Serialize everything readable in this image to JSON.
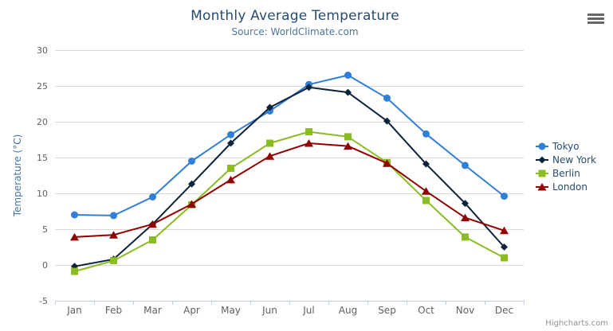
{
  "header": {
    "title": "Monthly Average Temperature",
    "subtitle": "Source: WorldClimate.com"
  },
  "export_menu": {
    "icon": "hamburger-icon"
  },
  "credit": {
    "label": "Highcharts.com"
  },
  "colors": {
    "title": "#274b6d",
    "subtitle": "#4d759e",
    "axis_label": "#606060",
    "y_axis_title": "#4572a7",
    "gridline": "#d8d8d8",
    "x_axis_line": "#c0d0e0",
    "legend_text": "#274b6d",
    "credit_text": "#909090",
    "menu_icon": "#666666"
  },
  "chart_data": {
    "type": "line",
    "title": "Monthly Average Temperature",
    "subtitle": "Source: WorldClimate.com",
    "xlabel": "",
    "ylabel": "Temperature (°C)",
    "ylim": [
      -5,
      30
    ],
    "ytick_interval": 5,
    "yticks": [
      -5,
      0,
      5,
      10,
      15,
      20,
      25,
      30
    ],
    "grid": true,
    "legend_position": "right",
    "categories": [
      "Jan",
      "Feb",
      "Mar",
      "Apr",
      "May",
      "Jun",
      "Jul",
      "Aug",
      "Sep",
      "Oct",
      "Nov",
      "Dec"
    ],
    "series": [
      {
        "name": "Tokyo",
        "color": "#2f7ed8",
        "marker": "circle",
        "values": [
          7.0,
          6.9,
          9.5,
          14.5,
          18.2,
          21.5,
          25.2,
          26.5,
          23.3,
          18.3,
          13.9,
          9.6
        ]
      },
      {
        "name": "New York",
        "color": "#0d233a",
        "marker": "diamond",
        "values": [
          -0.2,
          0.8,
          5.7,
          11.3,
          17.0,
          22.0,
          24.8,
          24.1,
          20.1,
          14.1,
          8.6,
          2.5
        ]
      },
      {
        "name": "Berlin",
        "color": "#8bbc21",
        "marker": "square",
        "values": [
          -0.9,
          0.6,
          3.5,
          8.4,
          13.5,
          17.0,
          18.6,
          17.9,
          14.3,
          9.0,
          3.9,
          1.0
        ]
      },
      {
        "name": "London",
        "color": "#910000",
        "marker": "triangle",
        "values": [
          3.9,
          4.2,
          5.7,
          8.5,
          11.9,
          15.2,
          17.0,
          16.6,
          14.2,
          10.3,
          6.6,
          4.8
        ]
      }
    ]
  }
}
